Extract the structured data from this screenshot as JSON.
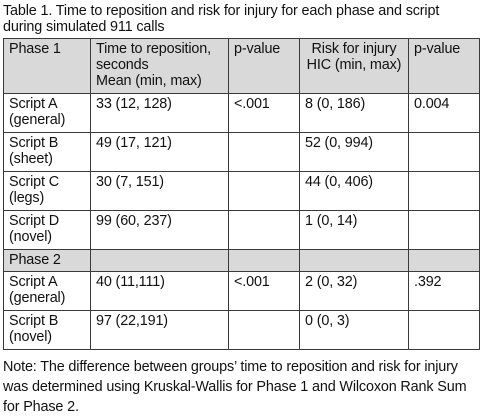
{
  "caption": {
    "line1": "Table 1. Time to reposition and risk for injury for each phase and script",
    "line2": "during simulated 911 calls"
  },
  "header": {
    "phase": "Phase 1",
    "time_line1": "Time to reposition,",
    "time_line2": "seconds",
    "time_line3": "Mean (min, max)",
    "pvalue1": "p-value",
    "risk_line1": "Risk for injury",
    "risk_line2": "HIC (min, max)",
    "pvalue2": "p-value"
  },
  "phase1_rows": [
    {
      "script": "Script A",
      "desc": "(general)",
      "time": "33 (12, 128)",
      "p1": "<.001",
      "risk": "8 (0, 186)",
      "p2": "0.004"
    },
    {
      "script": "Script B",
      "desc": "(sheet)",
      "time": "49 (17, 121)",
      "p1": "",
      "risk": "52 (0, 994)",
      "p2": ""
    },
    {
      "script": "Script C",
      "desc": "(legs)",
      "time": "30 (7, 151)",
      "p1": "",
      "risk": "44 (0, 406)",
      "p2": ""
    },
    {
      "script": "Script D",
      "desc": "(novel)",
      "time": "99 (60, 237)",
      "p1": "",
      "risk": "1 (0, 14)",
      "p2": ""
    }
  ],
  "phase2_label": "Phase 2",
  "phase2_rows": [
    {
      "script": "Script A",
      "desc": "(general)",
      "time": "40 (11,111)",
      "p1": "<.001",
      "risk": "2 (0, 32)",
      "p2": ".392"
    },
    {
      "script": "Script B",
      "desc": "(novel)",
      "time": "97 (22,191)",
      "p1": "",
      "risk": "0 (0, 3)",
      "p2": ""
    }
  ],
  "note": {
    "line1": "Note: The difference between groups’ time to reposition and risk for injury",
    "line2": "was determined using Kruskal-Wallis for Phase 1 and Wilcoxon Rank Sum",
    "line3": "for Phase 2."
  }
}
